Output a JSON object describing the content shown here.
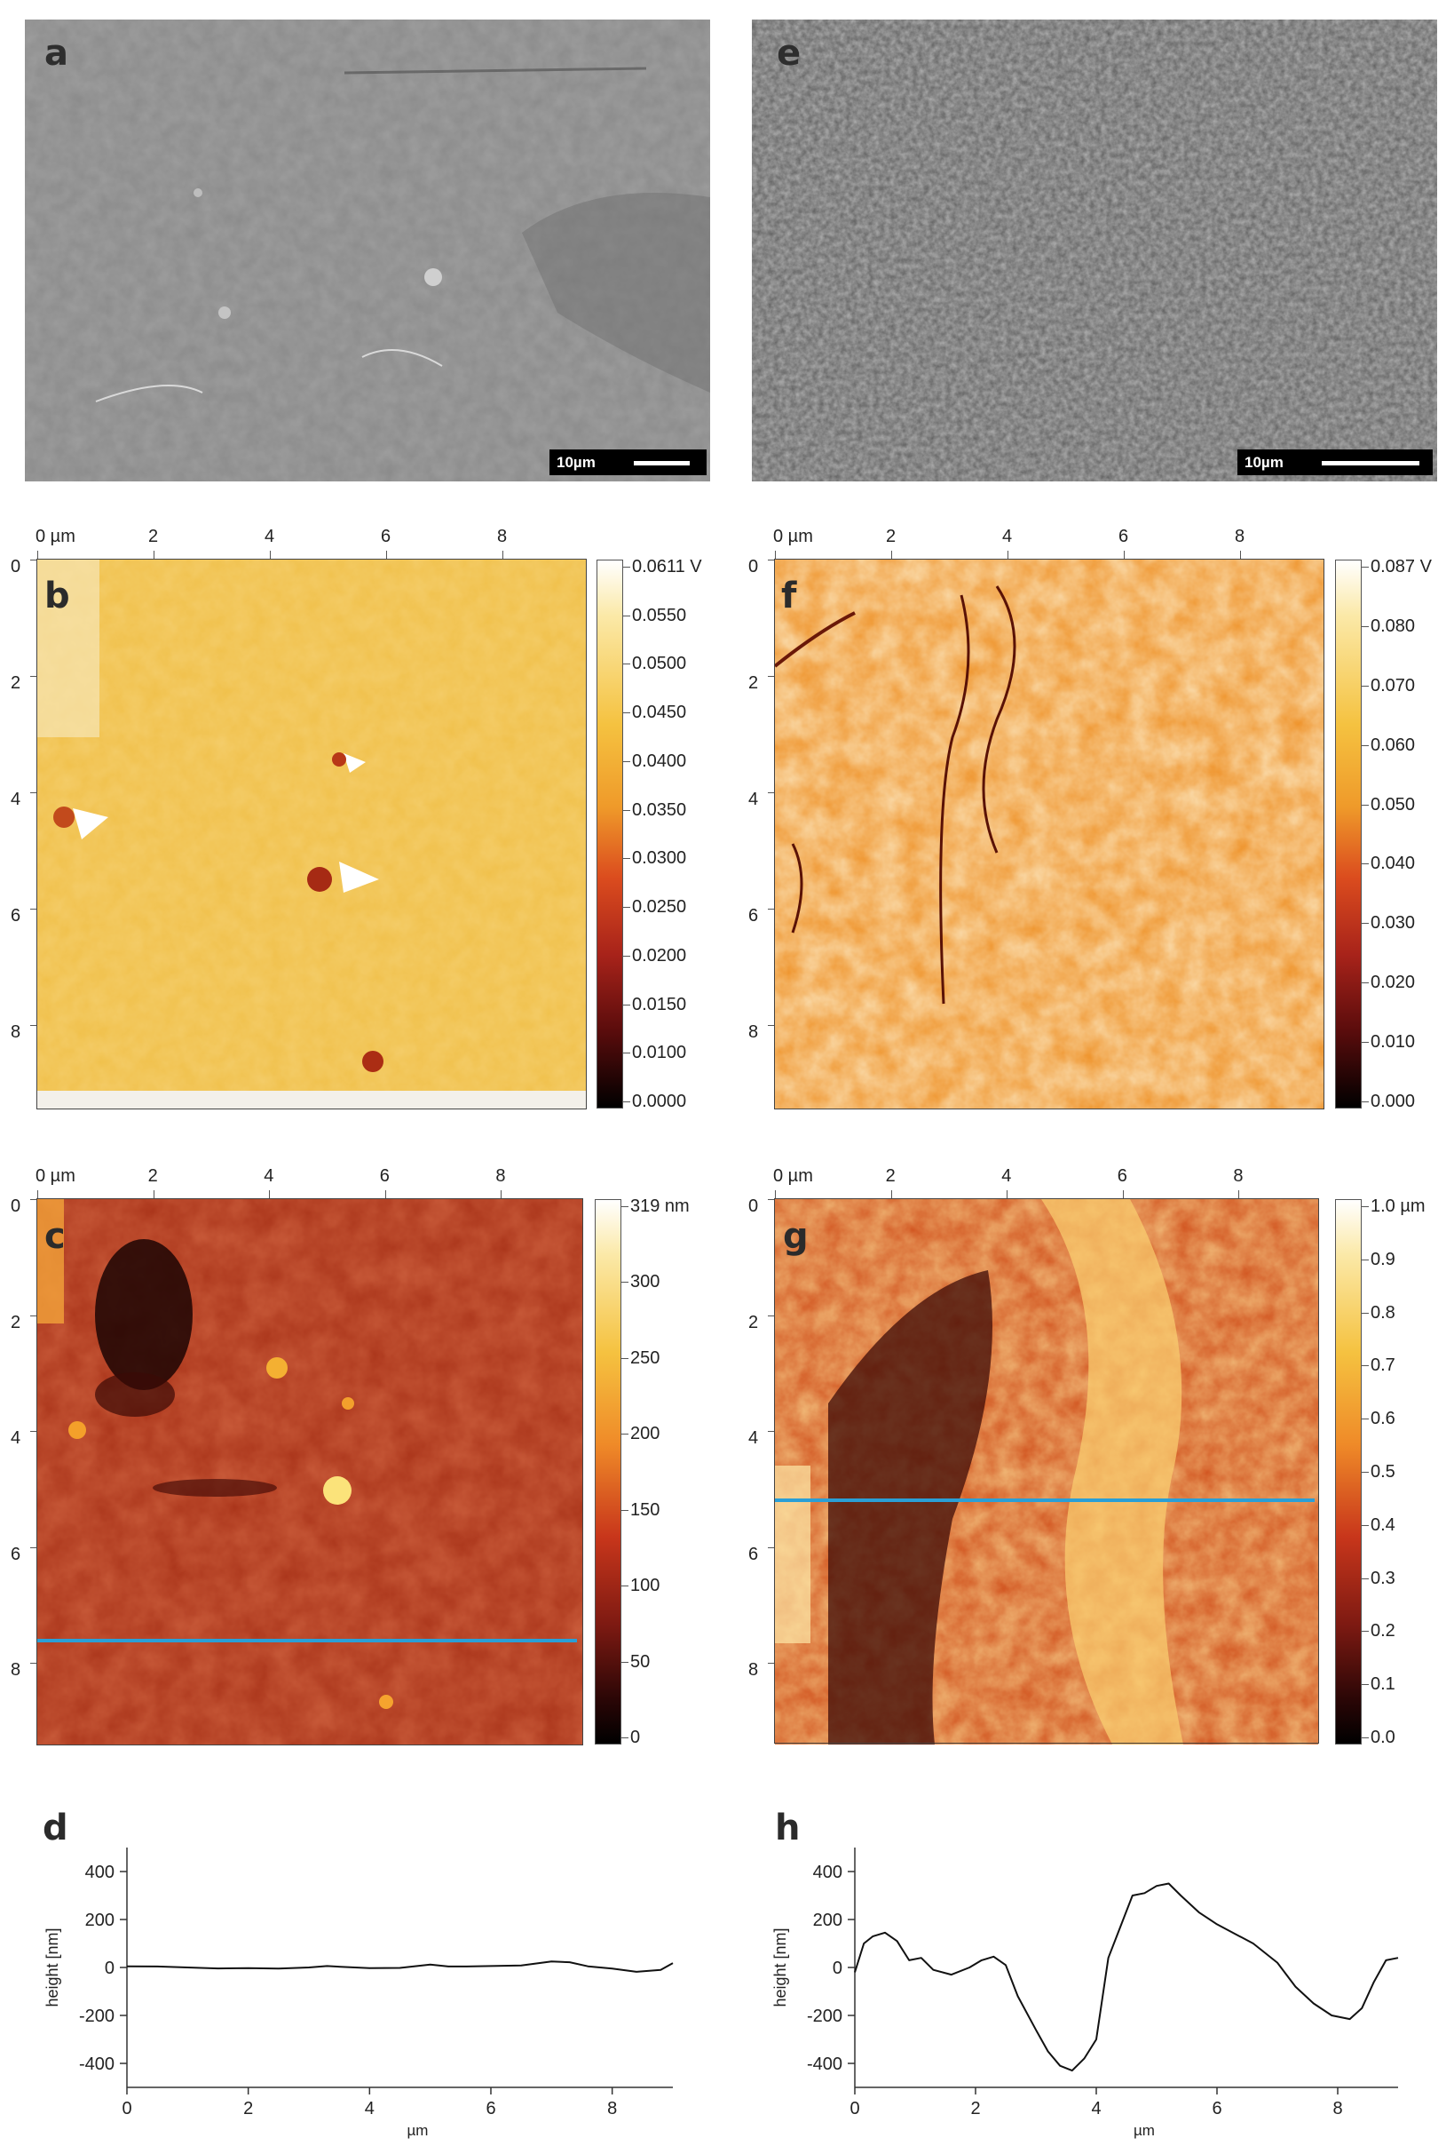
{
  "panels": {
    "a": {
      "letter": "a",
      "scalebar_label": "10µm"
    },
    "e": {
      "letter": "e",
      "scalebar_label": "10µm"
    },
    "b": {
      "letter": "b",
      "x_ticks": [
        "0 µm",
        "2",
        "4",
        "6",
        "8"
      ],
      "y_ticks": [
        "0",
        "2",
        "4",
        "6",
        "8"
      ],
      "colorbar": [
        "0.0611 V",
        "0.0550",
        "0.0500",
        "0.0450",
        "0.0400",
        "0.0350",
        "0.0300",
        "0.0250",
        "0.0200",
        "0.0150",
        "0.0100",
        "0.0000"
      ]
    },
    "f": {
      "letter": "f",
      "x_ticks": [
        "0 µm",
        "2",
        "4",
        "6",
        "8"
      ],
      "y_ticks": [
        "0",
        "2",
        "4",
        "6",
        "8"
      ],
      "colorbar": [
        "0.087 V",
        "0.080",
        "0.070",
        "0.060",
        "0.050",
        "0.040",
        "0.030",
        "0.020",
        "0.010",
        "0.000"
      ]
    },
    "c": {
      "letter": "c",
      "x_ticks": [
        "0 µm",
        "2",
        "4",
        "6",
        "8"
      ],
      "y_ticks": [
        "0",
        "2",
        "4",
        "6",
        "8"
      ],
      "colorbar": [
        "319 nm",
        "300",
        "250",
        "200",
        "150",
        "100",
        "50",
        "0"
      ]
    },
    "g": {
      "letter": "g",
      "x_ticks": [
        "0 µm",
        "2",
        "4",
        "6",
        "8"
      ],
      "y_ticks": [
        "0",
        "2",
        "4",
        "6",
        "8"
      ],
      "colorbar": [
        "1.0 µm",
        "0.9",
        "0.8",
        "0.7",
        "0.6",
        "0.5",
        "0.4",
        "0.3",
        "0.2",
        "0.1",
        "0.0"
      ]
    },
    "d": {
      "letter": "d"
    },
    "h": {
      "letter": "h"
    }
  },
  "colors": {
    "profile_line": "#2a9fd6",
    "curve": "#111111"
  },
  "chart_data": [
    {
      "panel": "d",
      "type": "line",
      "xlabel": "µm",
      "ylabel": "height [nm]",
      "xlim": [
        0,
        9
      ],
      "ylim": [
        -500,
        500
      ],
      "x_ticks": [
        0,
        2,
        4,
        6,
        8
      ],
      "y_ticks": [
        -400,
        -200,
        0,
        200,
        400
      ],
      "x": [
        0,
        0.5,
        1,
        1.5,
        2,
        2.5,
        3,
        3.3,
        3.6,
        4,
        4.5,
        5,
        5.3,
        5.6,
        6,
        6.5,
        7,
        7.3,
        7.6,
        8,
        8.4,
        8.8,
        9
      ],
      "y": [
        5,
        4,
        0,
        -4,
        -3,
        -5,
        0,
        6,
        2,
        -3,
        -2,
        12,
        4,
        4,
        6,
        8,
        25,
        22,
        5,
        -5,
        -18,
        -10,
        18
      ]
    },
    {
      "panel": "h",
      "type": "line",
      "xlabel": "µm",
      "ylabel": "height [nm]",
      "xlim": [
        0,
        9
      ],
      "ylim": [
        -500,
        500
      ],
      "x_ticks": [
        0,
        2,
        4,
        6,
        8
      ],
      "y_ticks": [
        -400,
        -200,
        0,
        200,
        400
      ],
      "x": [
        0,
        0.15,
        0.3,
        0.5,
        0.7,
        0.9,
        1.1,
        1.3,
        1.6,
        1.9,
        2.1,
        2.3,
        2.5,
        2.7,
        3.0,
        3.2,
        3.4,
        3.6,
        3.8,
        4.0,
        4.2,
        4.4,
        4.6,
        4.8,
        5.0,
        5.2,
        5.4,
        5.7,
        6.0,
        6.3,
        6.6,
        7.0,
        7.3,
        7.6,
        7.9,
        8.2,
        8.4,
        8.6,
        8.8,
        9.0
      ],
      "y": [
        -20,
        100,
        130,
        145,
        110,
        30,
        40,
        -10,
        -30,
        0,
        30,
        45,
        10,
        -120,
        -260,
        -350,
        -410,
        -430,
        -380,
        -300,
        40,
        170,
        300,
        310,
        340,
        350,
        300,
        230,
        180,
        140,
        100,
        20,
        -80,
        -150,
        -200,
        -215,
        -170,
        -60,
        30,
        40
      ]
    }
  ]
}
